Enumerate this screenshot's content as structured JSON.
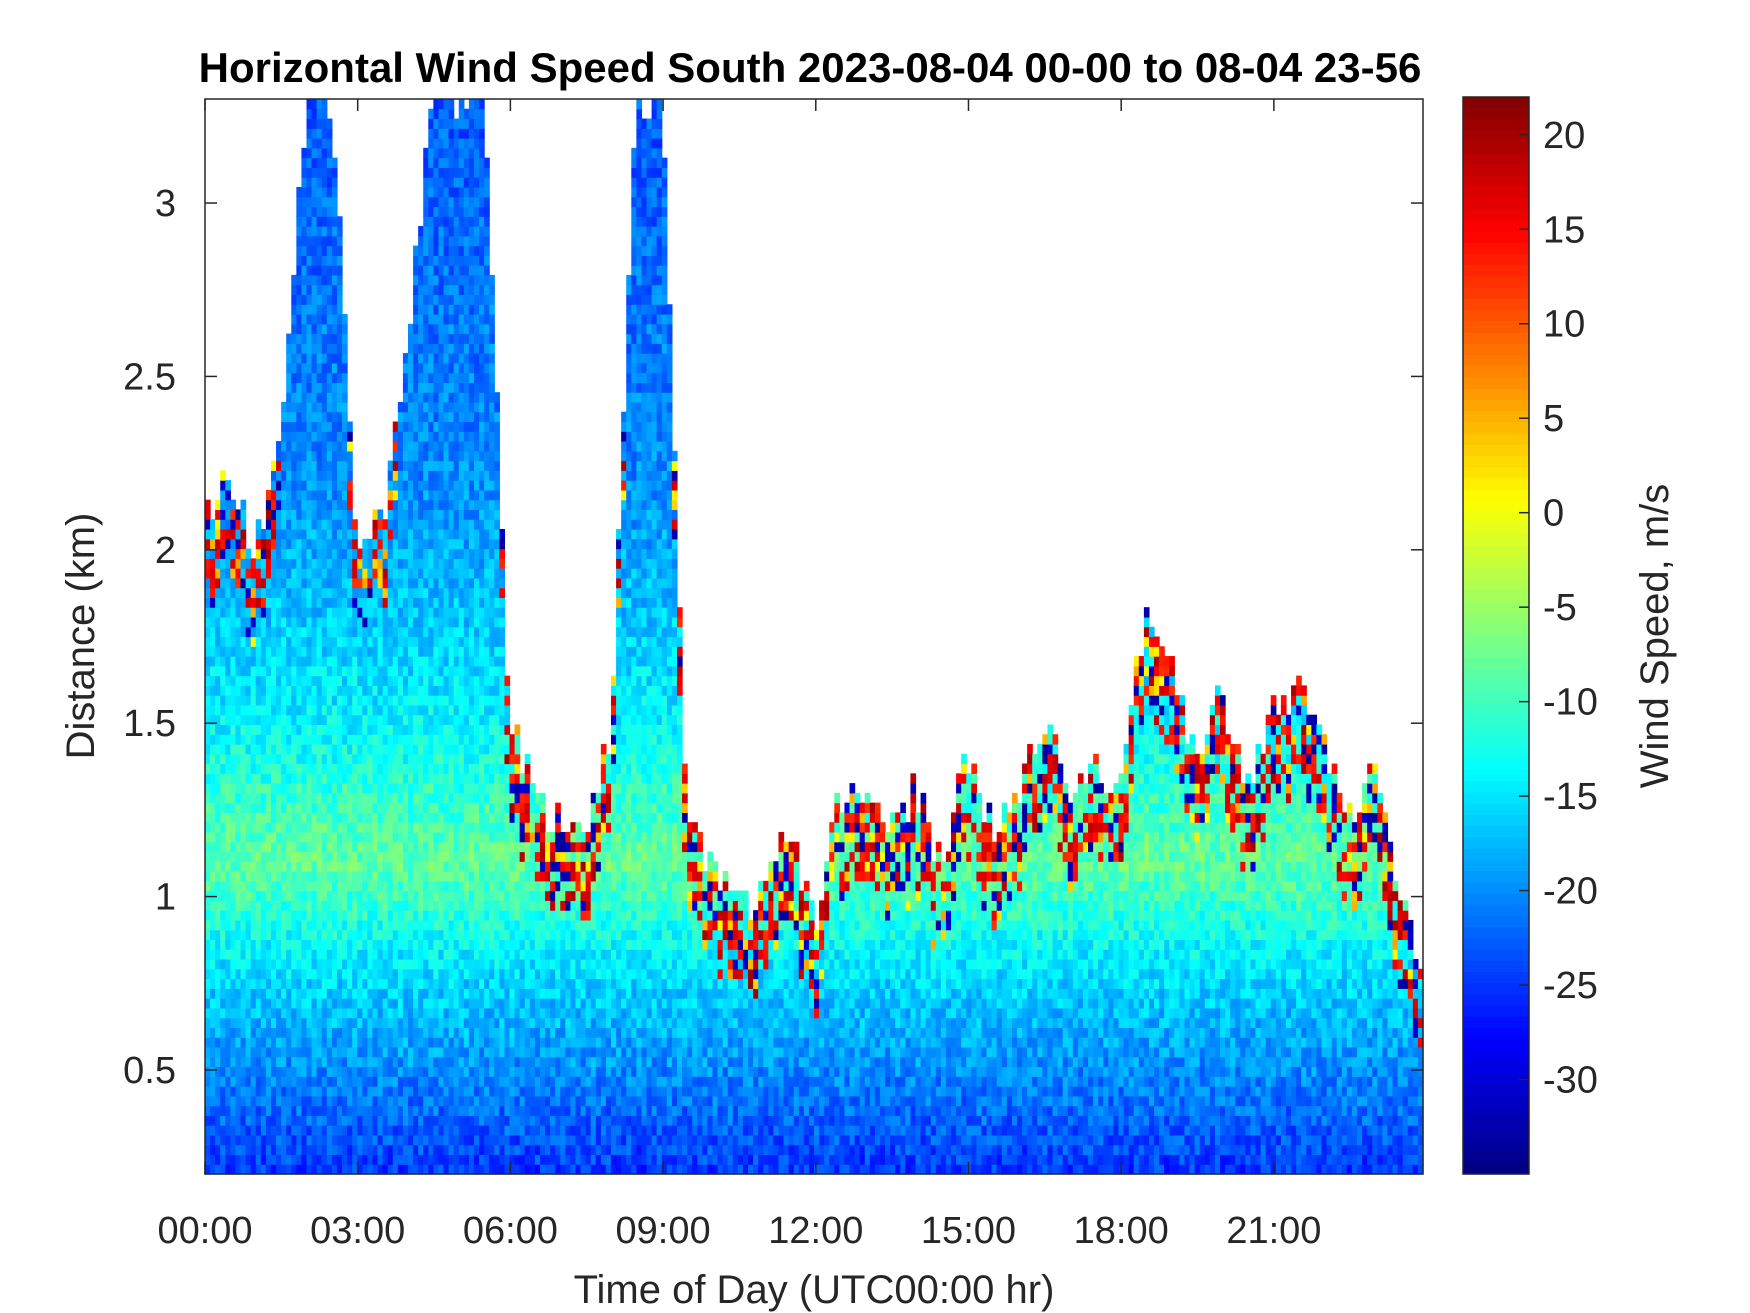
{
  "chart_data": {
    "type": "heatmap",
    "title": "Horizontal Wind Speed South 2023-08-04 00-00 to 08-04 23-56",
    "xlabel": "Time of Day (UTC00:00 hr)",
    "ylabel": "Distance (km)",
    "colorbar_label": "Wind Speed, m/s",
    "x_tick_labels": [
      "00:00",
      "03:00",
      "06:00",
      "09:00",
      "12:00",
      "15:00",
      "18:00",
      "21:00"
    ],
    "x_tick_hours": [
      0,
      3,
      6,
      9,
      12,
      15,
      18,
      21
    ],
    "xlim_hours": [
      0,
      23.93
    ],
    "y_ticks": [
      0.5,
      1,
      1.5,
      2,
      2.5,
      3
    ],
    "y_tick_labels": [
      "0.5",
      "1",
      "1.5",
      "2",
      "2.5",
      "3"
    ],
    "ylim": [
      0.2,
      3.3
    ],
    "colorbar_ticks": [
      20,
      15,
      10,
      5,
      0,
      -5,
      -10,
      -15,
      -20,
      -25,
      -30
    ],
    "colorbar_tick_labels": [
      "20",
      "15",
      "10",
      "5",
      "0",
      "-5",
      "-10",
      "-15",
      "-20",
      "-25",
      "-30"
    ],
    "clim": [
      -35,
      22
    ],
    "colormap": "jet",
    "grid": false,
    "data_top_km": [
      2.1,
      2.2,
      2.0,
      2.3,
      3.3,
      3.3,
      2.0,
      2.1,
      2.6,
      3.3,
      3.3,
      3.3,
      1.5,
      1.3,
      1.2,
      1.2,
      1.5,
      3.3,
      3.3,
      1.2,
      1.1,
      1.0,
      1.0,
      1.2,
      0.9,
      1.3,
      1.3,
      1.2,
      1.3,
      1.1,
      1.4,
      1.2,
      1.3,
      1.5,
      1.3,
      1.4,
      1.3,
      1.8,
      1.7,
      1.4,
      1.6,
      1.3,
      1.5,
      1.6,
      1.5,
      1.2,
      1.4,
      1.0,
      0.8
    ],
    "background_speed_profile": [
      {
        "km": 0.2,
        "speed": -25
      },
      {
        "km": 0.5,
        "speed": -20
      },
      {
        "km": 0.8,
        "speed": -15
      },
      {
        "km": 1.1,
        "speed": -8
      },
      {
        "km": 1.5,
        "speed": -14
      },
      {
        "km": 2.2,
        "speed": -20
      },
      {
        "km": 3.3,
        "speed": -23
      }
    ]
  }
}
